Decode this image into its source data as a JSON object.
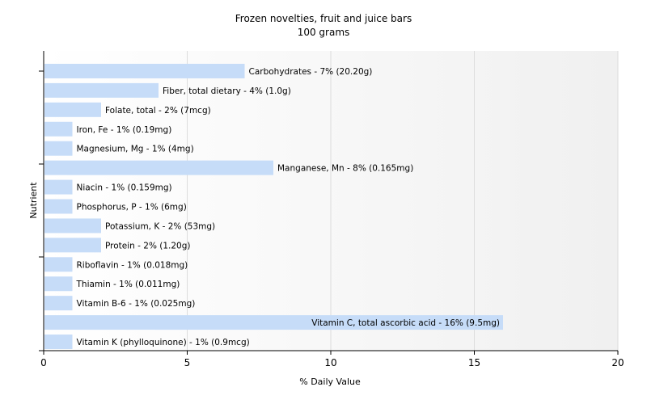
{
  "chart_data": {
    "type": "bar",
    "orientation": "horizontal",
    "title": "Frozen novelties, fruit and juice bars",
    "subtitle": "100 grams",
    "xlabel": "% Daily Value",
    "ylabel": "Nutrient",
    "xlim": [
      0,
      20
    ],
    "xticks": [
      0,
      5,
      10,
      15,
      20
    ],
    "grid": true,
    "bar_color": "#c6dcf8",
    "categories": [
      "Carbohydrates",
      "Fiber, total dietary",
      "Folate, total",
      "Iron, Fe",
      "Magnesium, Mg",
      "Manganese, Mn",
      "Niacin",
      "Phosphorus, P",
      "Potassium, K",
      "Protein",
      "Riboflavin",
      "Thiamin",
      "Vitamin B-6",
      "Vitamin C, total ascorbic acid",
      "Vitamin K (phylloquinone)"
    ],
    "values": [
      7,
      4,
      2,
      1,
      1,
      8,
      1,
      1,
      2,
      2,
      1,
      1,
      1,
      16,
      1
    ],
    "labels": [
      "Carbohydrates - 7% (20.20g)",
      "Fiber, total dietary - 4% (1.0g)",
      "Folate, total - 2% (7mcg)",
      "Iron, Fe - 1% (0.19mg)",
      "Magnesium, Mg - 1% (4mg)",
      "Manganese, Mn - 8% (0.165mg)",
      "Niacin - 1% (0.159mg)",
      "Phosphorus, P - 1% (6mg)",
      "Potassium, K - 2% (53mg)",
      "Protein - 2% (1.20g)",
      "Riboflavin - 1% (0.018mg)",
      "Thiamin - 1% (0.011mg)",
      "Vitamin B-6 - 1% (0.025mg)",
      "Vitamin C, total ascorbic acid - 16% (9.5mg)",
      "Vitamin K (phylloquinone) - 1% (0.9mcg)"
    ]
  }
}
